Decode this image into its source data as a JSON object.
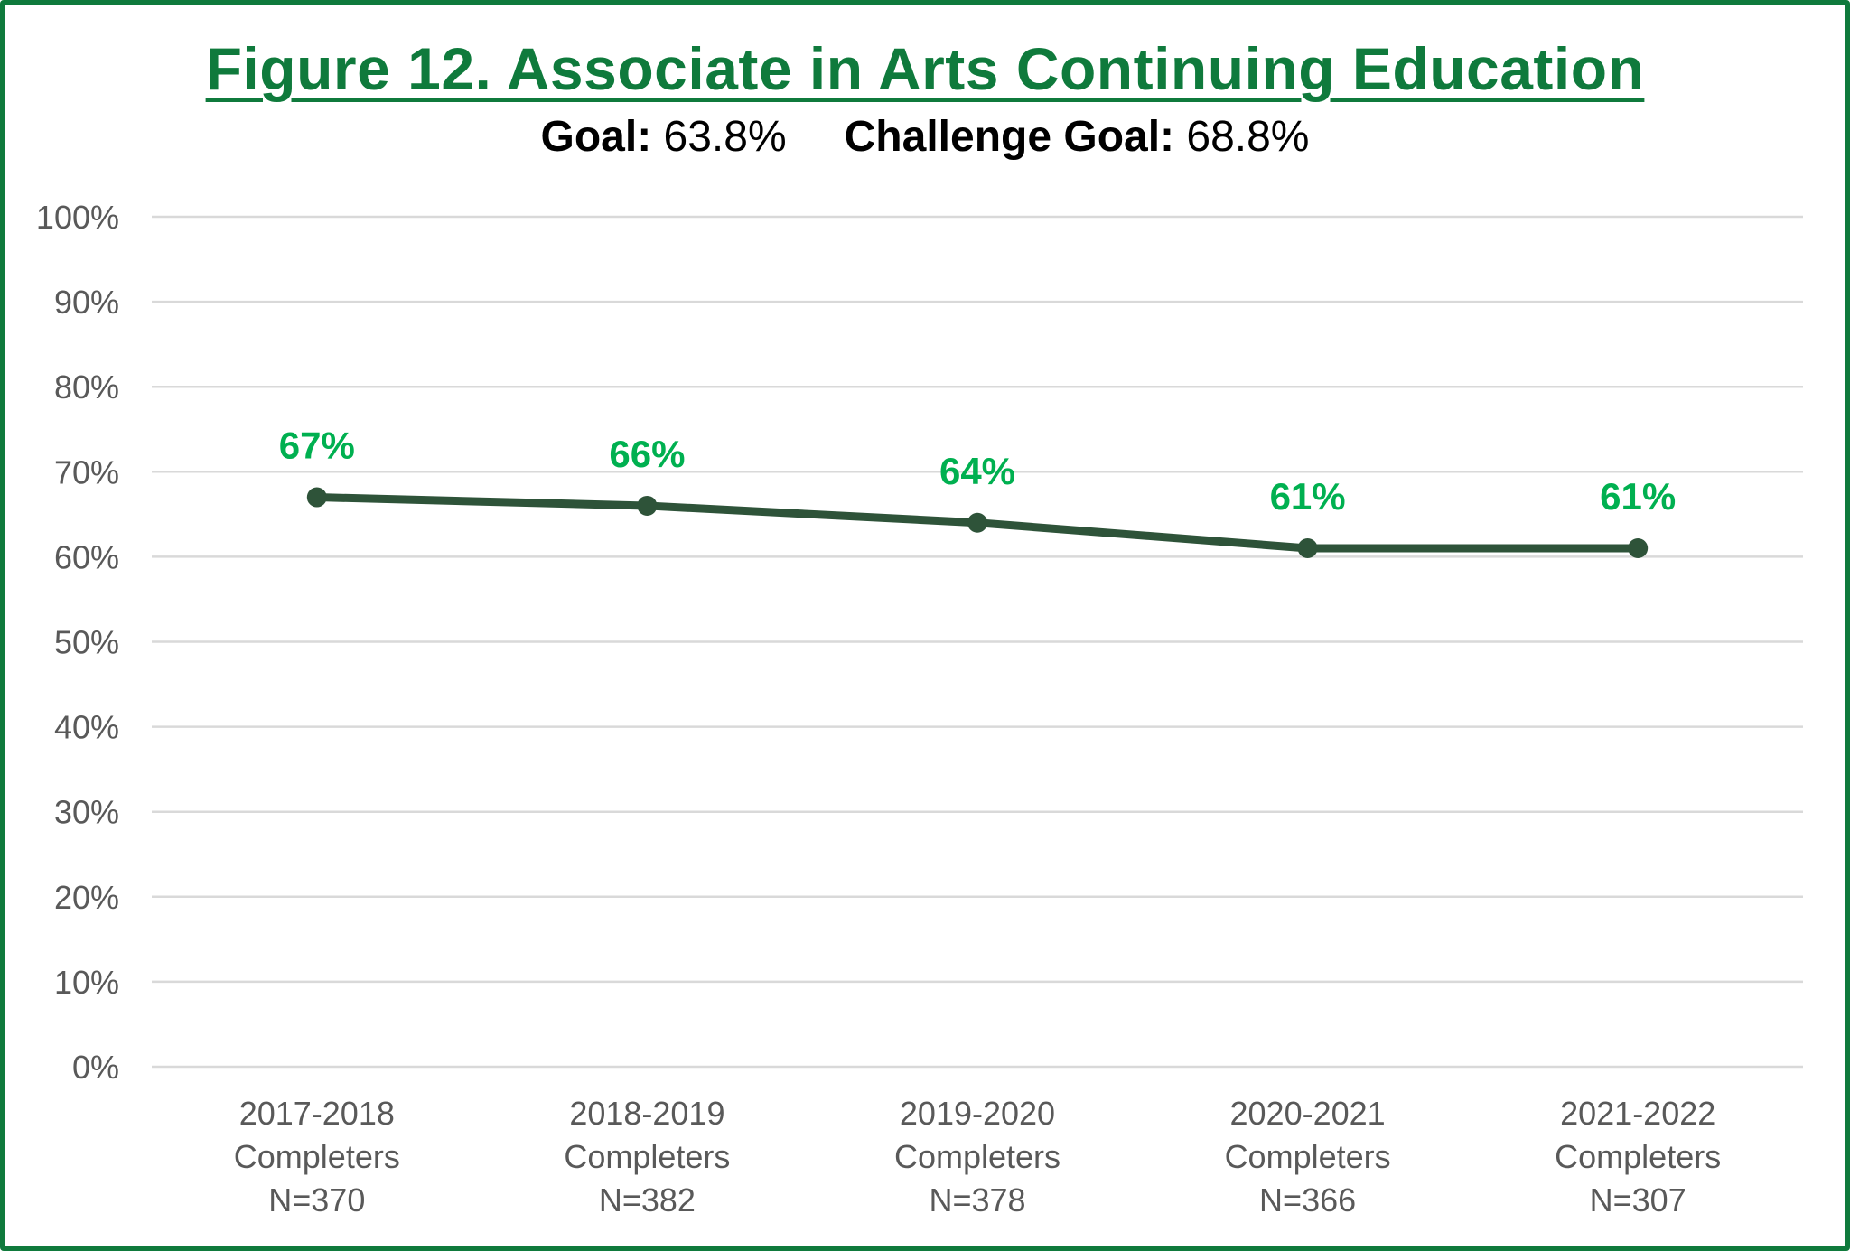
{
  "title": "Figure 12. Associate in Arts Continuing Education",
  "subtitle": {
    "goal_label": "Goal:",
    "goal_value": "63.8%",
    "challenge_label": "Challenge Goal:",
    "challenge_value": "68.8%"
  },
  "colors": {
    "frame": "#0f7a3c",
    "title": "#0f7a3c",
    "line": "#2e5339",
    "data_label": "#00b050",
    "grid": "#d9d9d9",
    "tick_text": "#595959"
  },
  "chart_data": {
    "type": "line",
    "title": "Figure 12. Associate in Arts Continuing Education",
    "categories": [
      [
        "2017-2018",
        "Completers",
        "N=370"
      ],
      [
        "2018-2019",
        "Completers",
        "N=382"
      ],
      [
        "2019-2020",
        "Completers",
        "N=378"
      ],
      [
        "2020-2021",
        "Completers",
        "N=366"
      ],
      [
        "2021-2022",
        "Completers",
        "N=307"
      ]
    ],
    "values": [
      67,
      66,
      64,
      61,
      61
    ],
    "data_labels": [
      "67%",
      "66%",
      "64%",
      "61%",
      "61%"
    ],
    "ylim": [
      0,
      100
    ],
    "yticks": [
      0,
      10,
      20,
      30,
      40,
      50,
      60,
      70,
      80,
      90,
      100
    ],
    "ytick_labels": [
      "0%",
      "10%",
      "20%",
      "30%",
      "40%",
      "50%",
      "60%",
      "70%",
      "80%",
      "90%",
      "100%"
    ],
    "grid": true,
    "legend": "none",
    "xlabel": "",
    "ylabel": ""
  }
}
